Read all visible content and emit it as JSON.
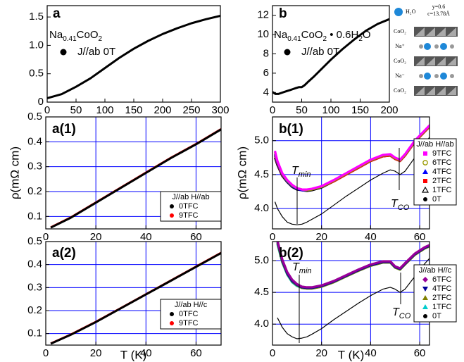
{
  "chart_data": [
    {
      "type": "line",
      "panel_label": "a",
      "formula": [
        "Na",
        "0.41",
        "CoO",
        "2"
      ],
      "x": [
        0,
        25,
        50,
        75,
        100,
        125,
        150,
        175,
        200,
        225,
        250,
        275,
        300
      ],
      "series": [
        {
          "name": "J//ab 0T",
          "color": "#000000",
          "marker": "dot",
          "values": [
            0.07,
            0.14,
            0.27,
            0.42,
            0.6,
            0.78,
            0.94,
            1.08,
            1.2,
            1.3,
            1.39,
            1.46,
            1.52
          ]
        }
      ],
      "xlim": [
        0,
        300
      ],
      "xticks": [
        0,
        50,
        100,
        150,
        200,
        250,
        300
      ],
      "ylim": [
        0,
        1.7
      ],
      "yticks": [
        0,
        0.5,
        {
          "value": 1,
          "label": "1.0"
        },
        1.5
      ],
      "grid": false
    },
    {
      "type": "line",
      "panel_label": "b",
      "formula": [
        "Na",
        "0.41",
        "CoO",
        "2",
        " • 0.6H",
        "2",
        "O"
      ],
      "x": [
        0,
        5,
        10,
        15,
        20,
        25,
        30,
        35,
        40,
        45,
        50,
        55,
        60,
        70,
        80,
        100,
        120,
        140,
        160,
        180,
        200
      ],
      "series": [
        {
          "name": "J//ab 0T",
          "color": "#000000",
          "marker": "dot",
          "values": [
            4.05,
            3.85,
            3.85,
            3.95,
            4.05,
            4.15,
            4.25,
            4.35,
            4.45,
            4.55,
            4.55,
            4.75,
            5.05,
            5.6,
            6.2,
            7.4,
            8.5,
            9.5,
            10.4,
            11.1,
            11.6
          ]
        }
      ],
      "xlim": [
        0,
        200
      ],
      "xticks": [
        0,
        50,
        100,
        150,
        200
      ],
      "ylim": [
        3,
        13
      ],
      "yticks": [
        4,
        6,
        8,
        10,
        12
      ],
      "grid": false,
      "inset": {
        "legend": "H₂O",
        "params": [
          "y=0.6",
          "c=13.78Å"
        ],
        "layers": [
          "CoO₂",
          "Na⁺",
          "CoO₂",
          "Na⁻",
          "CoO₂"
        ]
      }
    },
    {
      "type": "line",
      "panel_label": "a(1)",
      "ylabel": "ρ(mΩ cm)",
      "legend_title": "J//ab H//ab",
      "x": [
        2,
        10,
        20,
        30,
        40,
        50,
        60,
        70
      ],
      "series": [
        {
          "name": "0TFC",
          "color": "#000000",
          "marker": "dot",
          "values": [
            0.055,
            0.095,
            0.155,
            0.215,
            0.275,
            0.335,
            0.39,
            0.45
          ]
        },
        {
          "name": "9TFC",
          "color": "#ff0000",
          "marker": "dot",
          "values": [
            0.056,
            0.096,
            0.156,
            0.216,
            0.276,
            0.336,
            0.391,
            0.451
          ]
        }
      ],
      "xlim": [
        0,
        70
      ],
      "xticks": [
        0,
        20,
        40,
        60
      ],
      "ylim": [
        0.05,
        0.5
      ],
      "yticks": [
        0.1,
        0.2,
        0.3,
        0.4,
        0.5
      ],
      "grid": true,
      "grid_color": "#0000ff"
    },
    {
      "type": "line",
      "panel_label": "b(1)",
      "ylabel": "ρ(mΩ cm)",
      "legend_title": "J//ab H//ab",
      "annotations": [
        {
          "parts": [
            "T",
            "min"
          ]
        },
        {
          "parts": [
            "T",
            "CO"
          ]
        }
      ],
      "x": [
        1,
        2,
        4,
        6,
        8,
        10,
        12,
        14,
        16,
        20,
        25,
        30,
        35,
        40,
        45,
        48,
        50,
        52,
        54,
        58,
        62,
        66,
        70
      ],
      "series": [
        {
          "name": "9TFC",
          "color": "#ff00ff",
          "marker": "square",
          "values": [
            4.85,
            4.7,
            4.52,
            4.42,
            4.35,
            4.3,
            4.28,
            4.28,
            4.29,
            4.33,
            4.42,
            4.52,
            4.62,
            4.72,
            4.79,
            4.8,
            4.75,
            4.72,
            4.8,
            5.0,
            5.15,
            5.3,
            5.45
          ]
        },
        {
          "name": "6TFC",
          "color": "#999900",
          "marker": "circle-open",
          "values": [
            4.83,
            4.69,
            4.51,
            4.41,
            4.34,
            4.3,
            4.28,
            4.27,
            4.28,
            4.32,
            4.41,
            4.51,
            4.61,
            4.71,
            4.78,
            4.79,
            4.74,
            4.71,
            4.79,
            4.99,
            5.14,
            5.29,
            5.44
          ]
        },
        {
          "name": "4TFC",
          "color": "#0000ff",
          "marker": "triangle",
          "values": [
            4.8,
            4.67,
            4.5,
            4.4,
            4.33,
            4.29,
            4.27,
            4.27,
            4.28,
            4.32,
            4.41,
            4.51,
            4.61,
            4.71,
            4.78,
            4.79,
            4.74,
            4.71,
            4.79,
            4.99,
            5.14,
            5.29,
            5.44
          ]
        },
        {
          "name": "2TFC",
          "color": "#ff0000",
          "marker": "square",
          "values": [
            4.78,
            4.66,
            4.49,
            4.4,
            4.33,
            4.29,
            4.27,
            4.27,
            4.28,
            4.32,
            4.4,
            4.5,
            4.6,
            4.7,
            4.77,
            4.78,
            4.73,
            4.7,
            4.78,
            4.98,
            5.13,
            5.28,
            5.43
          ]
        },
        {
          "name": "1TFC",
          "color": "#000000",
          "marker": "triangle-open",
          "values": [
            4.75,
            4.64,
            4.48,
            4.39,
            4.32,
            4.28,
            4.27,
            4.26,
            4.27,
            4.31,
            4.4,
            4.5,
            4.6,
            4.7,
            4.77,
            4.78,
            4.73,
            4.7,
            4.78,
            4.98,
            5.13,
            5.28,
            5.43
          ]
        },
        {
          "name": "0T",
          "color": "#000000",
          "marker": "dot",
          "values": [
            4.1,
            4.0,
            3.88,
            3.8,
            3.77,
            3.76,
            3.77,
            3.8,
            3.84,
            3.92,
            4.05,
            4.18,
            4.3,
            4.42,
            4.52,
            4.57,
            4.55,
            4.5,
            4.55,
            4.75,
            4.95,
            5.15,
            5.35
          ]
        }
      ],
      "xlim": [
        0,
        64
      ],
      "xticks": [
        0,
        20,
        40,
        60
      ],
      "ylim": [
        3.7,
        5.35
      ],
      "yticks": [
        {
          "value": 4,
          "label": "4.0"
        },
        4.5,
        {
          "value": 5,
          "label": "5.0"
        }
      ],
      "grid": true,
      "grid_color": "#0000ff"
    },
    {
      "type": "line",
      "panel_label": "a(2)",
      "xlabel": "T (K)",
      "legend_title": "J//ab H//c",
      "x": [
        2,
        10,
        20,
        30,
        40,
        50,
        60,
        70
      ],
      "series": [
        {
          "name": "0TFC",
          "color": "#000000",
          "marker": "dot",
          "values": [
            0.056,
            0.095,
            0.15,
            0.21,
            0.27,
            0.33,
            0.39,
            0.45
          ]
        },
        {
          "name": "9TFC",
          "color": "#ff0000",
          "marker": "dot",
          "values": [
            0.057,
            0.096,
            0.151,
            0.211,
            0.271,
            0.331,
            0.391,
            0.451
          ]
        }
      ],
      "xlim": [
        0,
        70
      ],
      "xticks": [
        0,
        20,
        40,
        60
      ],
      "ylim": [
        0.05,
        0.5
      ],
      "yticks": [
        0.1,
        0.2,
        0.3,
        0.4,
        0.5
      ],
      "grid": true,
      "grid_color": "#0000ff"
    },
    {
      "type": "line",
      "panel_label": "b(2)",
      "xlabel": "T (K)",
      "legend_title": "J//ab H//c",
      "annotations": [
        {
          "parts": [
            "T",
            "min"
          ]
        },
        {
          "parts": [
            "T",
            "CO"
          ]
        }
      ],
      "x": [
        2,
        4,
        6,
        8,
        10,
        12,
        14,
        16,
        20,
        25,
        30,
        35,
        40,
        45,
        48,
        50,
        52,
        54,
        58,
        62,
        66,
        70
      ],
      "series": [
        {
          "name": "6TFC",
          "color": "#990099",
          "marker": "diamond",
          "values": [
            5.32,
            5.02,
            4.82,
            4.7,
            4.63,
            4.59,
            4.58,
            4.58,
            4.61,
            4.68,
            4.77,
            4.86,
            4.94,
            4.99,
            4.99,
            4.91,
            4.88,
            4.96,
            5.11,
            5.21,
            5.28,
            5.35
          ]
        },
        {
          "name": "4TFC",
          "color": "#000099",
          "marker": "triangle-down",
          "values": [
            5.3,
            5.0,
            4.8,
            4.68,
            4.62,
            4.58,
            4.57,
            4.57,
            4.6,
            4.67,
            4.76,
            4.85,
            4.93,
            4.98,
            4.98,
            4.9,
            4.87,
            4.95,
            5.1,
            5.2,
            5.27,
            5.34
          ]
        },
        {
          "name": "2TFC",
          "color": "#808000",
          "marker": "triangle",
          "values": [
            5.28,
            4.98,
            4.79,
            4.67,
            4.61,
            4.57,
            4.56,
            4.56,
            4.59,
            4.66,
            4.75,
            4.84,
            4.92,
            4.97,
            4.97,
            4.89,
            4.86,
            4.94,
            5.09,
            5.19,
            5.26,
            5.33
          ]
        },
        {
          "name": "1TFC",
          "color": "#00cccc",
          "marker": "triangle",
          "values": [
            5.26,
            4.97,
            4.78,
            4.66,
            4.6,
            4.57,
            4.56,
            4.56,
            4.59,
            4.66,
            4.75,
            4.84,
            4.92,
            4.97,
            4.97,
            4.89,
            4.86,
            4.94,
            5.09,
            5.19,
            5.26,
            5.33
          ]
        },
        {
          "name": "0T",
          "color": "#000000",
          "marker": "dot",
          "values": [
            4.1,
            3.95,
            3.85,
            3.8,
            3.77,
            3.78,
            3.8,
            3.84,
            3.93,
            4.07,
            4.2,
            4.33,
            4.45,
            4.55,
            4.58,
            4.55,
            4.5,
            4.55,
            4.75,
            4.95,
            5.12,
            5.28
          ]
        }
      ],
      "xlim": [
        0,
        64
      ],
      "xticks": [
        0,
        20,
        40,
        60
      ],
      "ylim": [
        3.67,
        5.3
      ],
      "yticks": [
        {
          "value": 4,
          "label": "4.0"
        },
        4.5,
        {
          "value": 5,
          "label": "5.0"
        }
      ],
      "grid": true,
      "grid_color": "#0000ff"
    }
  ]
}
